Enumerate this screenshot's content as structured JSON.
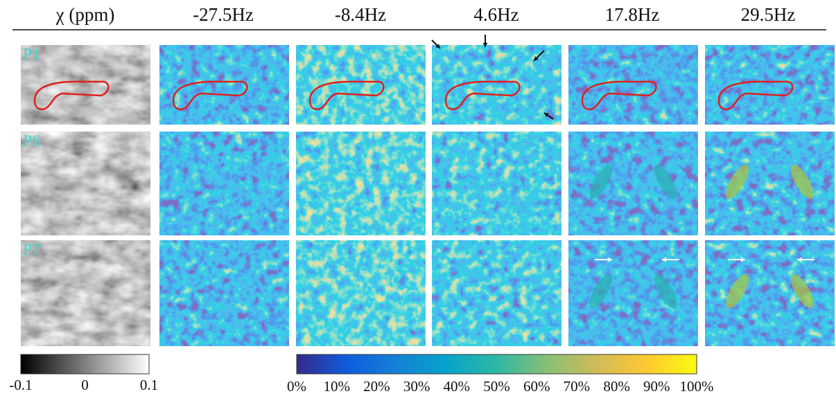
{
  "column_headers": [
    "χ (ppm)",
    "-27.5Hz",
    "-8.4Hz",
    "4.6Hz",
    "17.8Hz",
    "29.5Hz"
  ],
  "row_labels": [
    "P1",
    "P6",
    "P7"
  ],
  "colorbars": {
    "susceptibility": {
      "ticks": [
        "-0.1",
        "0",
        "0.1"
      ]
    },
    "fraction": {
      "ticks": [
        "0%",
        "10%",
        "20%",
        "30%",
        "40%",
        "50%",
        "60%",
        "70%",
        "80%",
        "90%",
        "100%"
      ]
    }
  }
}
